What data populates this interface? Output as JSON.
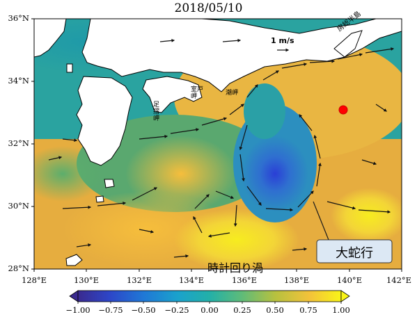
{
  "title": "2018/05/10",
  "map": {
    "lat_labels": [
      "36°N",
      "34°N",
      "32°N",
      "30°N",
      "28°N"
    ],
    "lon_labels": [
      "128°E",
      "130°E",
      "132°E",
      "134°E",
      "136°E",
      "138°E",
      "140°E",
      "142°E"
    ],
    "extent": {
      "lon": [
        128,
        142
      ],
      "lat": [
        28,
        36
      ]
    },
    "scale_arrow_label": "1 m/s",
    "place_labels": {
      "boso": "房総半島",
      "ashizuri": "足摺岬",
      "muroto": "室戸岬",
      "shiono": "潮岬"
    },
    "annotation_meander": "大蛇行",
    "annotation_eddy": "時計回り渦",
    "marker_color": "#ff0000"
  },
  "colorbar": {
    "ticks": [
      "−1.00",
      "−0.75",
      "−0.50",
      "−0.25",
      "0.00",
      "0.25",
      "0.50",
      "0.75",
      "1.00"
    ],
    "range": [
      -1.0,
      1.0
    ],
    "colormap": "viridis-like (blue → teal → green → yellow)"
  }
}
